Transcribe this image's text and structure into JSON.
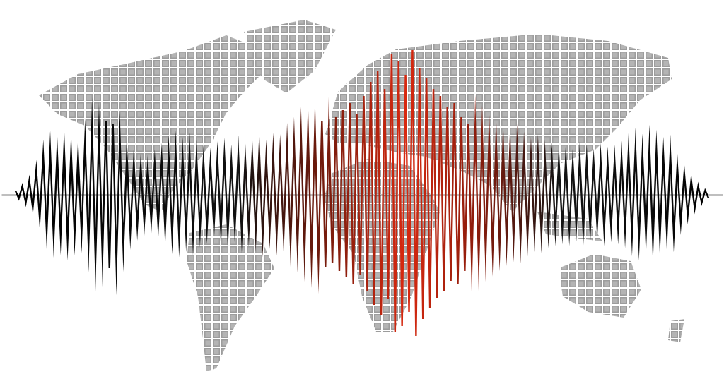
{
  "chart_data": {
    "type": "line",
    "xlim": [
      -4,
      203
    ],
    "ylim": [
      -210,
      210
    ],
    "xticks": [],
    "yticks": [],
    "tick_labels": false,
    "grid": false,
    "values": [
      6,
      -5,
      12,
      -11,
      20,
      -18,
      35,
      -33,
      55,
      -52,
      62,
      -60,
      58,
      -57,
      65,
      -63,
      60,
      -58,
      55,
      -54,
      75,
      -72,
      95,
      -92,
      88,
      -86,
      105,
      -104,
      100,
      -97,
      78,
      -75,
      55,
      -53,
      45,
      -44,
      40,
      -39,
      38,
      -37,
      44,
      -42,
      50,
      -49,
      58,
      -56,
      62,
      -60,
      55,
      -54,
      60,
      -58,
      52,
      -50,
      48,
      -47,
      45,
      -44,
      52,
      -50,
      55,
      -53,
      48,
      -47,
      58,
      -56,
      50,
      -49,
      55,
      -53,
      62,
      -60,
      52,
      -51,
      60,
      -58,
      58,
      -56,
      70,
      -68,
      75,
      -73,
      85,
      -82,
      90,
      -88,
      95,
      -93,
      105,
      -102,
      98,
      -96,
      110,
      -108,
      120,
      -117,
      130,
      -126,
      115,
      -113,
      140,
      -136,
      160,
      -156,
      175,
      -170,
      150,
      -147,
      200,
      -195,
      190,
      -186,
      170,
      -166,
      205,
      -200,
      180,
      -176,
      165,
      -161,
      150,
      -146,
      140,
      -137,
      125,
      -122,
      130,
      -127,
      110,
      -108,
      100,
      -98,
      95,
      -93,
      85,
      -83,
      80,
      -78,
      75,
      -73,
      70,
      -68,
      65,
      -64,
      68,
      -66,
      60,
      -59,
      55,
      -54,
      58,
      -56,
      52,
      -51,
      50,
      -49,
      48,
      -47,
      50,
      -49,
      45,
      -44,
      52,
      -50,
      48,
      -47,
      44,
      -43,
      50,
      -49,
      46,
      -45,
      48,
      -47,
      52,
      -50,
      60,
      -58,
      65,
      -63,
      58,
      -57,
      68,
      -66,
      62,
      -60,
      55,
      -54,
      58,
      -56,
      40,
      -39,
      30,
      -29,
      20,
      -19,
      12,
      -11,
      6,
      -5
    ]
  }
}
